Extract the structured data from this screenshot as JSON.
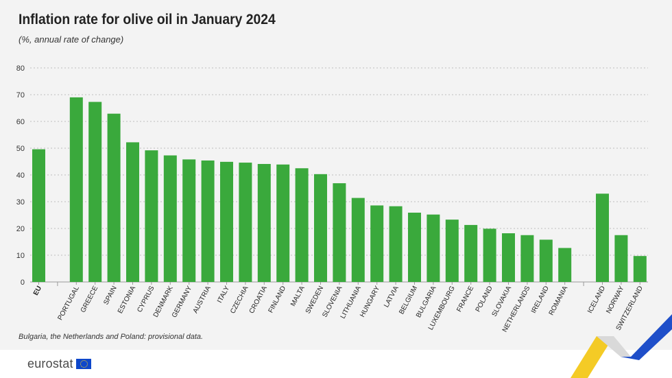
{
  "title": "Inflation rate for olive oil in January 2024",
  "subtitle": "(%, annual rate of change)",
  "note": "Bulgaria, the Netherlands and Poland: provisional data.",
  "brand": "eurostat",
  "colors": {
    "bar": "#3aa93c",
    "grid": "#bdbdbd",
    "text": "#222222"
  },
  "chart_data": {
    "type": "bar",
    "title": "Inflation rate for olive oil in January 2024",
    "ylabel": "",
    "xlabel": "",
    "ylim": [
      0,
      80
    ],
    "yticks": [
      0,
      10,
      20,
      30,
      40,
      50,
      60,
      70,
      80
    ],
    "grid": true,
    "groups": [
      {
        "categories": [
          "EU"
        ],
        "values": [
          49.6
        ],
        "bold": true
      },
      {
        "categories": [
          "PORTUGAL",
          "GREECE",
          "SPAIN",
          "ESTONIA",
          "CYPRUS",
          "DENMARK",
          "GERMANY",
          "AUSTRIA",
          "ITALY",
          "CZECHIA",
          "CROATIA",
          "FINLAND",
          "MALTA",
          "SWEDEN",
          "SLOVENIA",
          "LITHUANIA",
          "HUNGARY",
          "LATVIA",
          "BELGIUM",
          "BULGARIA",
          "LUXEMBOURG",
          "FRANCE",
          "POLAND",
          "SLOVAKIA",
          "NETHERLANDS",
          "IRELAND",
          "ROMANIA"
        ],
        "values": [
          69.0,
          67.3,
          62.9,
          52.2,
          49.2,
          47.3,
          45.8,
          45.4,
          44.9,
          44.6,
          44.1,
          43.9,
          42.5,
          40.3,
          36.9,
          31.4,
          28.6,
          28.3,
          25.9,
          25.2,
          23.3,
          21.3,
          19.9,
          18.2,
          17.5,
          15.8,
          12.7
        ]
      },
      {
        "categories": [
          "ICELAND",
          "NORWAY",
          "SWITZERLAND"
        ],
        "values": [
          33.0,
          17.5,
          9.7
        ]
      }
    ]
  }
}
